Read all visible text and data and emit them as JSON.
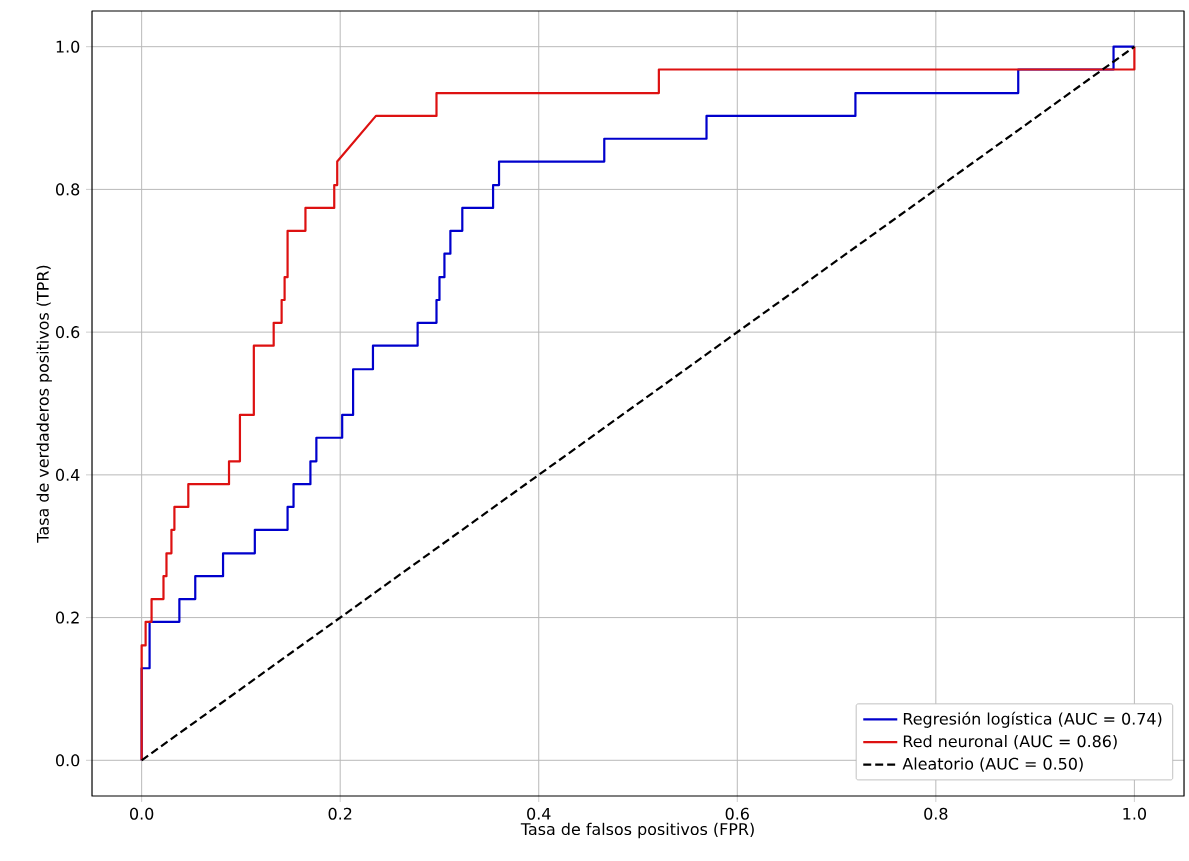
{
  "chart_data": {
    "type": "line",
    "xlabel": "Tasa de falsos positivos (FPR)",
    "ylabel": "Tasa de verdaderos positivos (TPR)",
    "xlim": [
      -0.05,
      1.05
    ],
    "ylim": [
      -0.05,
      1.05
    ],
    "xticks": [
      {
        "value": 0,
        "label": "0.0"
      },
      {
        "value": 0.2,
        "label": "0.2"
      },
      {
        "value": 0.4,
        "label": "0.4"
      },
      {
        "value": 0.6,
        "label": "0.6"
      },
      {
        "value": 0.8,
        "label": "0.8"
      },
      {
        "value": 1,
        "label": "1.0"
      }
    ],
    "yticks": [
      {
        "value": 0,
        "label": "0.0"
      },
      {
        "value": 0.2,
        "label": "0.2"
      },
      {
        "value": 0.4,
        "label": "0.4"
      },
      {
        "value": 0.6,
        "label": "0.6"
      },
      {
        "value": 0.8,
        "label": "0.8"
      },
      {
        "value": 1,
        "label": "1.0"
      }
    ],
    "grid": true,
    "legend": "bottom right",
    "marker": "none",
    "series": [
      {
        "name": "Regresión logística (AUC = 0.74)",
        "color": "#0000cc",
        "line_style": "solid",
        "x": [
          0,
          0,
          0.008,
          0.008,
          0.038,
          0.038,
          0.054,
          0.054,
          0.082,
          0.082,
          0.114,
          0.114,
          0.147,
          0.147,
          0.153,
          0.153,
          0.17,
          0.17,
          0.176,
          0.176,
          0.202,
          0.202,
          0.213,
          0.213,
          0.233,
          0.233,
          0.278,
          0.278,
          0.297,
          0.297,
          0.3,
          0.3,
          0.305,
          0.305,
          0.311,
          0.311,
          0.323,
          0.323,
          0.354,
          0.354,
          0.36,
          0.36,
          0.466,
          0.466,
          0.569,
          0.569,
          0.719,
          0.719,
          0.883,
          0.883,
          0.979,
          0.979,
          1
        ],
        "values": [
          0,
          0.129,
          0.129,
          0.194,
          0.194,
          0.226,
          0.226,
          0.258,
          0.258,
          0.29,
          0.29,
          0.323,
          0.323,
          0.355,
          0.355,
          0.387,
          0.387,
          0.419,
          0.419,
          0.452,
          0.452,
          0.484,
          0.484,
          0.548,
          0.548,
          0.581,
          0.581,
          0.613,
          0.613,
          0.645,
          0.645,
          0.677,
          0.677,
          0.71,
          0.71,
          0.742,
          0.742,
          0.774,
          0.774,
          0.806,
          0.806,
          0.839,
          0.839,
          0.871,
          0.871,
          0.903,
          0.903,
          0.935,
          0.935,
          0.968,
          0.968,
          1,
          1
        ]
      },
      {
        "name": "Red neuronal (AUC = 0.86)",
        "color": "#dd1111",
        "line_style": "solid",
        "x": [
          0,
          0,
          0.004,
          0.004,
          0.01,
          0.01,
          0.022,
          0.022,
          0.025,
          0.025,
          0.03,
          0.03,
          0.033,
          0.033,
          0.047,
          0.047,
          0.088,
          0.088,
          0.099,
          0.099,
          0.113,
          0.113,
          0.133,
          0.133,
          0.141,
          0.141,
          0.144,
          0.144,
          0.147,
          0.147,
          0.165,
          0.165,
          0.194,
          0.194,
          0.197,
          0.197,
          0.236,
          0.297,
          0.297,
          0.521,
          0.521,
          1,
          1
        ],
        "values": [
          0,
          0.161,
          0.161,
          0.194,
          0.194,
          0.226,
          0.226,
          0.258,
          0.258,
          0.29,
          0.29,
          0.323,
          0.323,
          0.355,
          0.355,
          0.387,
          0.387,
          0.419,
          0.419,
          0.484,
          0.484,
          0.581,
          0.581,
          0.613,
          0.613,
          0.645,
          0.645,
          0.677,
          0.677,
          0.742,
          0.742,
          0.774,
          0.774,
          0.806,
          0.806,
          0.839,
          0.903,
          0.903,
          0.935,
          0.935,
          0.968,
          0.968,
          1
        ]
      },
      {
        "name": "Aleatorio (AUC = 0.50)",
        "color": "#000000",
        "line_style": "dashed",
        "x": [
          0,
          1
        ],
        "values": [
          0,
          1
        ]
      }
    ]
  }
}
